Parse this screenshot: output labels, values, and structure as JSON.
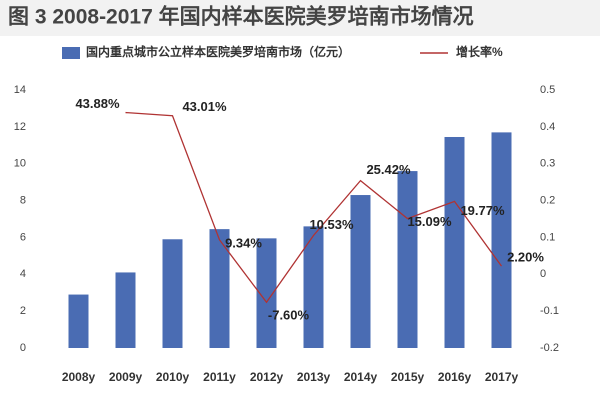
{
  "chart_data": {
    "type": "bar_line",
    "title": "图 3  2008-2017 年国内样本医院美罗培南市场情况",
    "categories": [
      "2008y",
      "2009y",
      "2010y",
      "2011y",
      "2012y",
      "2013y",
      "2014y",
      "2015y",
      "2016y",
      "2017y"
    ],
    "series": [
      {
        "name": "国内重点城市公立样本医院美罗培南市场（亿元）",
        "type": "bar",
        "color": "#4a6cb3",
        "values": [
          2.9,
          4.1,
          5.9,
          6.45,
          5.95,
          6.6,
          8.3,
          9.6,
          11.45,
          11.7
        ]
      },
      {
        "name": "增长率%",
        "type": "line",
        "axis": "y2",
        "color": "#b03333",
        "values": [
          null,
          0.4388,
          0.4301,
          0.0934,
          -0.076,
          0.1053,
          0.2542,
          0.1509,
          0.1977,
          0.022
        ],
        "value_labels": [
          null,
          "43.88%",
          "43.01%",
          "9.34%",
          "-7.60%",
          "10.53%",
          "25.42%",
          "15.09%",
          "19.77%",
          "2.20%"
        ]
      }
    ],
    "ylim": [
      0,
      14
    ],
    "yticks": [
      0,
      2,
      4,
      6,
      8,
      10,
      12,
      14
    ],
    "y2lim": [
      -0.2,
      0.5
    ],
    "y2ticks": [
      -0.2,
      -0.1,
      0,
      0.1,
      0.2,
      0.3,
      0.4,
      0.5
    ],
    "grid": false,
    "legend": "top"
  }
}
